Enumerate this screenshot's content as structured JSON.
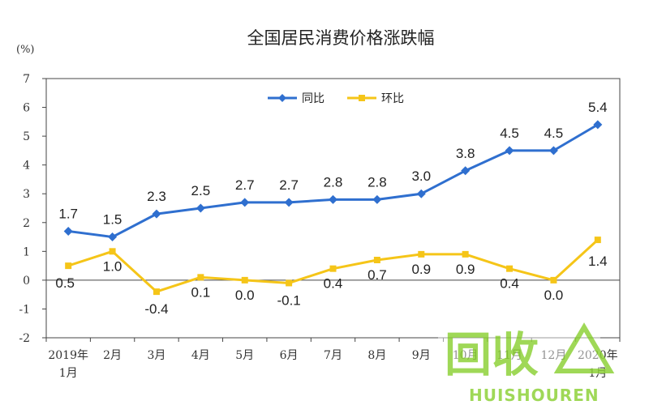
{
  "chart_data": {
    "type": "line",
    "title": "全国居民消费价格涨跌幅",
    "ylabel": "(%)",
    "ylim": [
      -2,
      7
    ],
    "yticks": [
      7,
      6,
      5,
      4,
      3,
      2,
      1,
      0,
      -1,
      -2
    ],
    "categories": [
      [
        "2019年",
        "1月"
      ],
      [
        "2月"
      ],
      [
        "3月"
      ],
      [
        "4月"
      ],
      [
        "5月"
      ],
      [
        "6月"
      ],
      [
        "7月"
      ],
      [
        "8月"
      ],
      [
        "9月"
      ],
      [
        "10月"
      ],
      [
        "11月"
      ],
      [
        "12月"
      ],
      [
        "2020年",
        "1月"
      ]
    ],
    "series": [
      {
        "name": "同比",
        "color": "#2f6fcf",
        "marker": "diamond",
        "values": [
          1.7,
          1.5,
          2.3,
          2.5,
          2.7,
          2.7,
          2.8,
          2.8,
          3.0,
          3.8,
          4.5,
          4.5,
          5.4
        ],
        "labels": [
          "1.7",
          "1.5",
          "2.3",
          "2.5",
          "2.7",
          "2.7",
          "2.8",
          "2.8",
          "3.0",
          "3.8",
          "4.5",
          "4.5",
          "5.4"
        ]
      },
      {
        "name": "环比",
        "color": "#f5c518",
        "marker": "square",
        "values": [
          0.5,
          1.0,
          -0.4,
          0.1,
          0.0,
          -0.1,
          0.4,
          0.7,
          0.9,
          0.9,
          0.4,
          0.0,
          1.4
        ],
        "labels": [
          "0.5",
          "1.0",
          "-0.4",
          "0.1",
          "0.0",
          "-0.1",
          "0.4",
          "0.7",
          "0.9",
          "0.9",
          "0.4",
          "0.0",
          "1.4"
        ]
      }
    ],
    "legend_position": "top-center",
    "grid": false
  },
  "watermark": {
    "text_main": "回收",
    "text_sub": "HUISHOUREN",
    "color": "#8fd23a"
  }
}
